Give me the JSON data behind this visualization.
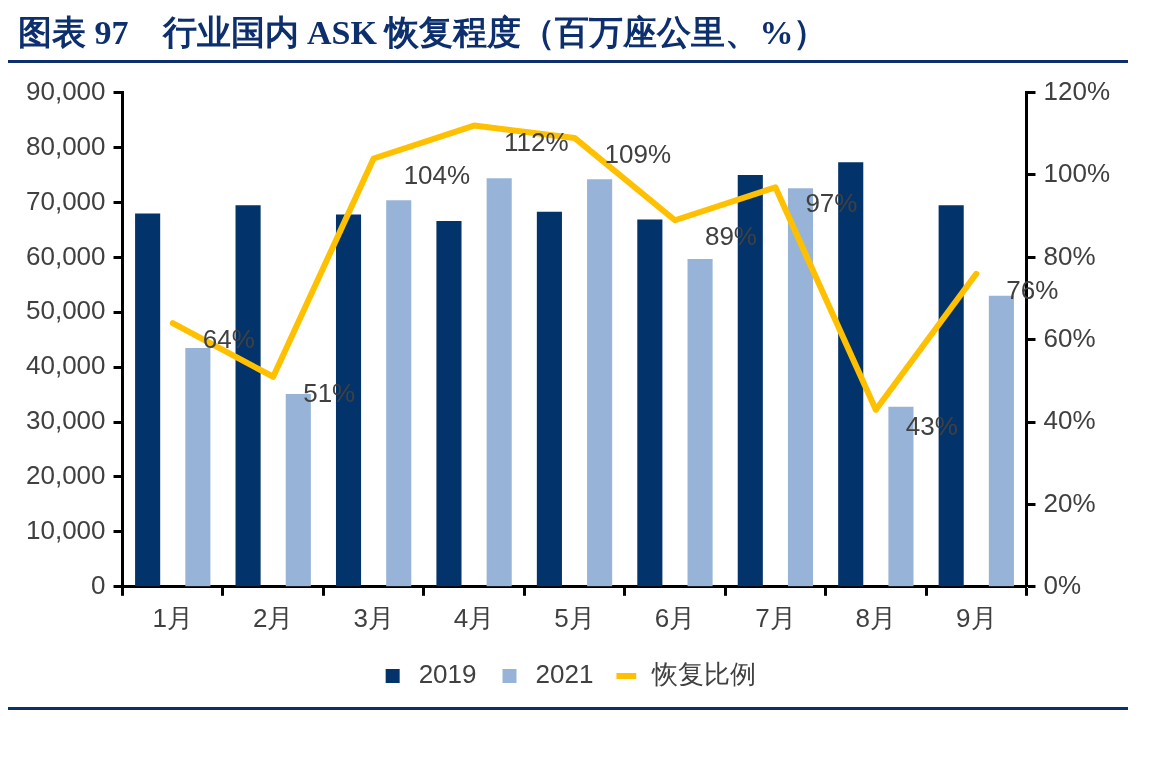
{
  "chart_data": {
    "type": "bar",
    "title": "图表 97　行业国内 ASK 恢复程度（百万座公里、%）",
    "categories": [
      "1月",
      "2月",
      "3月",
      "4月",
      "5月",
      "6月",
      "7月",
      "8月",
      "9月"
    ],
    "series": [
      {
        "name": "2019",
        "color": "#02336a",
        "values": [
          68000,
          69500,
          67800,
          66600,
          68300,
          66900,
          75000,
          77300,
          69500
        ]
      },
      {
        "name": "2021",
        "color": "#97b4d8",
        "values": [
          43500,
          35100,
          70400,
          74400,
          74200,
          59700,
          72600,
          32800,
          53000
        ]
      },
      {
        "name": "恢复比例",
        "type": "line",
        "axis": "y2",
        "color": "#ffc000",
        "values": [
          64,
          51,
          104,
          112,
          109,
          89,
          97,
          43,
          76
        ],
        "value_labels": [
          "64%",
          "51%",
          "104%",
          "112%",
          "109%",
          "89%",
          "97%",
          "43%",
          "76%"
        ]
      }
    ],
    "ylim": [
      0,
      90000
    ],
    "yticks": [
      {
        "value": 0,
        "label": "0"
      },
      {
        "value": 10000,
        "label": "10,000"
      },
      {
        "value": 20000,
        "label": "20,000"
      },
      {
        "value": 30000,
        "label": "30,000"
      },
      {
        "value": 40000,
        "label": "40,000"
      },
      {
        "value": 50000,
        "label": "50,000"
      },
      {
        "value": 60000,
        "label": "60,000"
      },
      {
        "value": 70000,
        "label": "70,000"
      },
      {
        "value": 80000,
        "label": "80,000"
      },
      {
        "value": 90000,
        "label": "90,000"
      }
    ],
    "y2lim": [
      0,
      120
    ],
    "y2ticks": [
      {
        "value": 0,
        "label": "0%"
      },
      {
        "value": 20,
        "label": "20%"
      },
      {
        "value": 40,
        "label": "40%"
      },
      {
        "value": 60,
        "label": "60%"
      },
      {
        "value": 80,
        "label": "80%"
      },
      {
        "value": 100,
        "label": "100%"
      },
      {
        "value": 120,
        "label": "120%"
      }
    ],
    "grid": false,
    "legend": "bottom",
    "marker": "none"
  }
}
